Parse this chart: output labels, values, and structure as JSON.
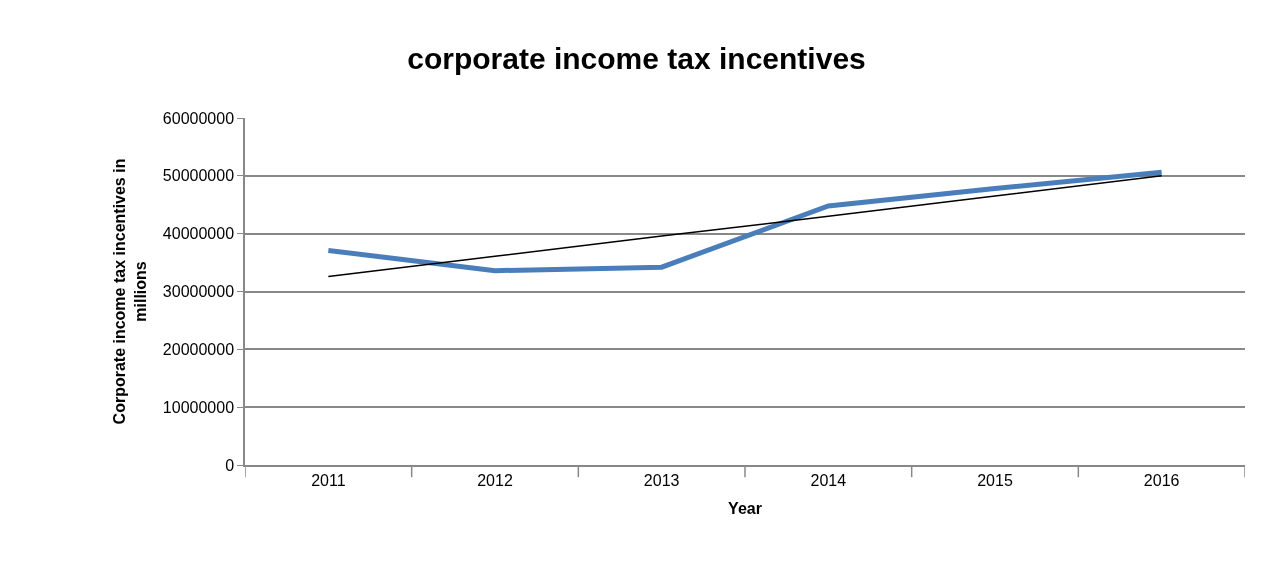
{
  "chart_data": {
    "type": "line",
    "title": "corporate income tax incentives",
    "xlabel": "Year",
    "ylabel": "Corporate income tax incentives in millions",
    "categories": [
      "2011",
      "2012",
      "2013",
      "2014",
      "2015",
      "2016"
    ],
    "series": [
      {
        "color": "#4a7ebb",
        "values": [
          37100000,
          33600000,
          34200000,
          44800000,
          47800000,
          50600000
        ]
      },
      {
        "color": "#000000",
        "values": [
          32600000,
          36100000,
          39600000,
          43000000,
          46500000,
          50000000
        ]
      }
    ],
    "ylim": [
      0,
      60000000
    ],
    "yticks": [
      0,
      10000000,
      20000000,
      30000000,
      40000000,
      50000000,
      60000000
    ],
    "grid": "y",
    "marker": "none",
    "line_style": "solid"
  }
}
